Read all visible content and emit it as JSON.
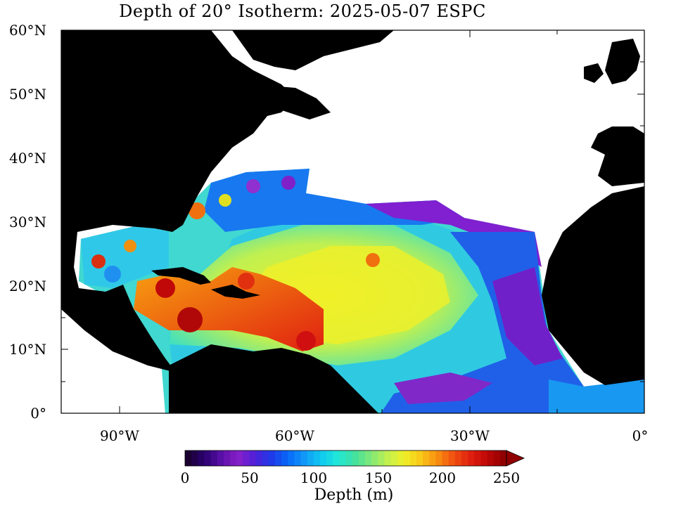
{
  "title": "Depth of 20° Isotherm: 2025-05-07 ESPC",
  "map": {
    "lon_range": [
      -100,
      0
    ],
    "lat_range": [
      0,
      60
    ],
    "lat_labels": [
      "60°N",
      "50°N",
      "40°N",
      "30°N",
      "20°N",
      "10°N",
      "0°"
    ],
    "lon_labels": [
      "90°W",
      "60°W",
      "30°W",
      "0°"
    ],
    "land_color": "#000000",
    "nodata_color": "#ffffff"
  },
  "colorbar": {
    "title": "Depth (m)",
    "tick_labels": [
      "0",
      "50",
      "100",
      "150",
      "200",
      "250"
    ],
    "range": [
      0,
      250
    ],
    "extend": "max",
    "colors": [
      "#1a0030",
      "#2a0070",
      "#5a10a8",
      "#8820c8",
      "#5020d8",
      "#2038e8",
      "#0868f8",
      "#1098f8",
      "#10c8f0",
      "#20e8d8",
      "#40e0a0",
      "#80e878",
      "#c0f050",
      "#f0f028",
      "#f8c818",
      "#f89010",
      "#f05010",
      "#e02010",
      "#c00808",
      "#900000"
    ]
  }
}
